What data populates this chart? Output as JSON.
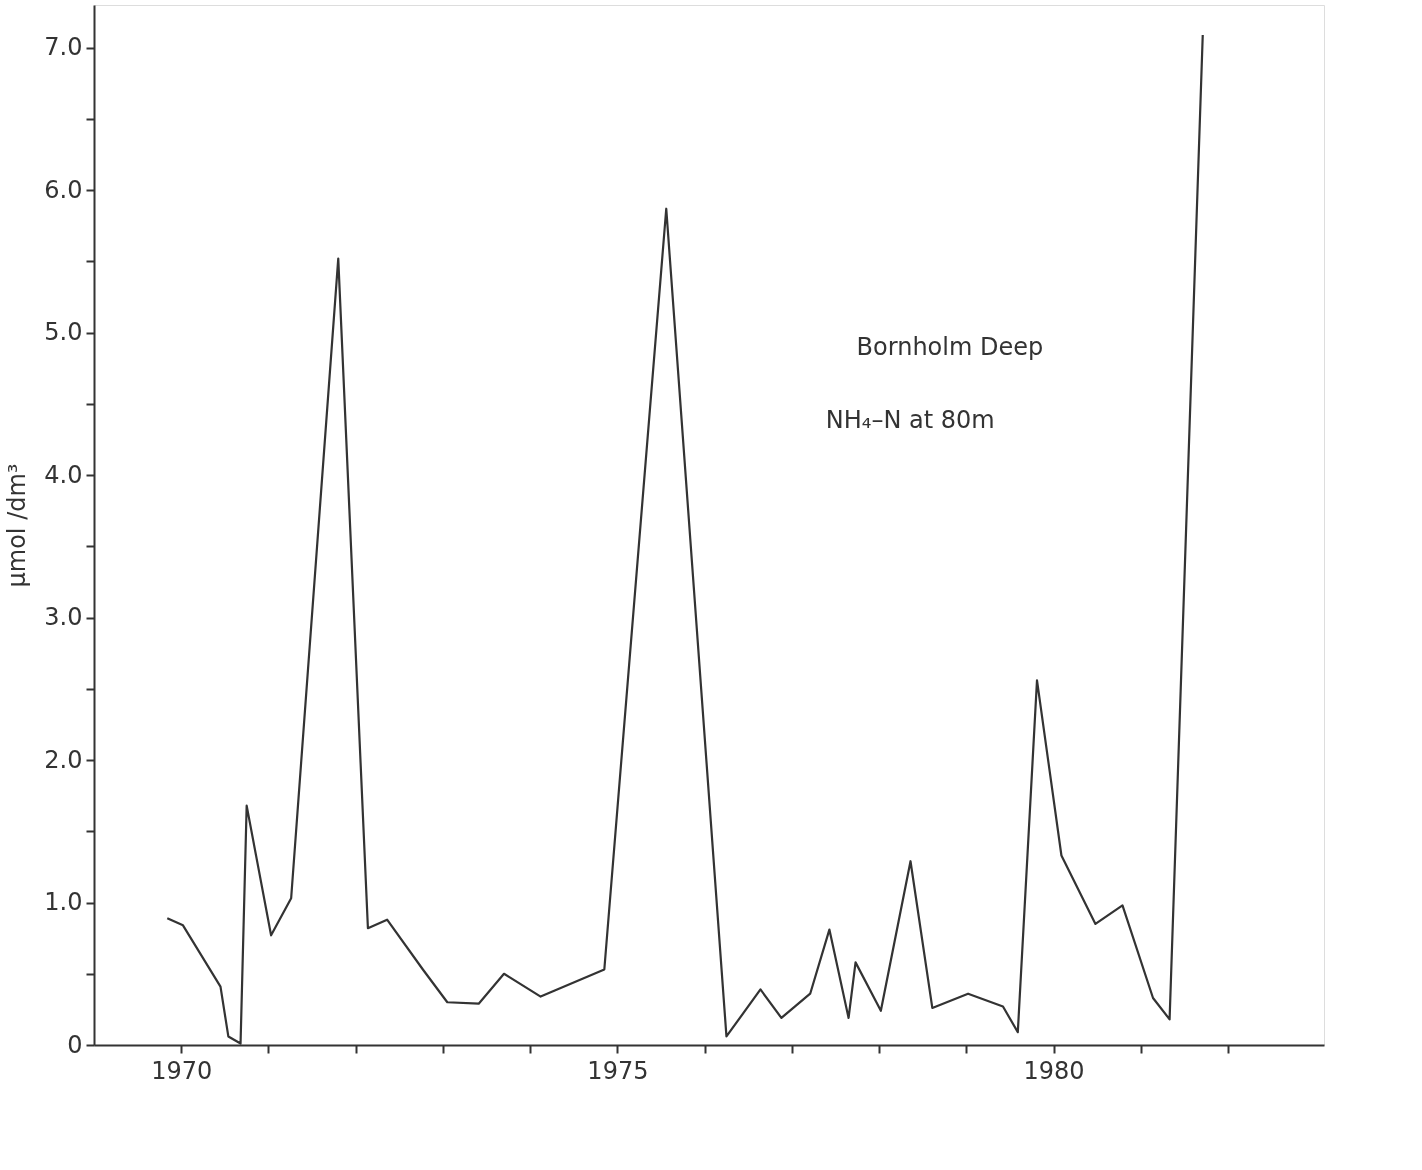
{
  "chart_data": {
    "type": "line",
    "ylabel": "μmol /dm³",
    "annotations": [
      "Bornholm Deep",
      "NH₄–N at 80m"
    ],
    "x": [
      1969.84,
      1970.02,
      1970.45,
      1970.54,
      1970.68,
      1970.75,
      1971.03,
      1971.26,
      1971.8,
      1972.14,
      1972.36,
      1972.77,
      1973.05,
      1973.41,
      1973.7,
      1974.12,
      1974.85,
      1975.56,
      1976.25,
      1976.64,
      1976.88,
      1977.21,
      1977.43,
      1977.65,
      1977.73,
      1978.02,
      1978.36,
      1978.61,
      1979.02,
      1979.42,
      1979.59,
      1979.81,
      1980.09,
      1980.48,
      1980.79,
      1981.14,
      1981.33,
      1981.71
    ],
    "series": [
      {
        "color": "#333333",
        "values": [
          0.89,
          0.84,
          0.41,
          0.06,
          0.01,
          1.68,
          0.77,
          1.03,
          5.52,
          0.82,
          0.88,
          0.53,
          0.3,
          0.29,
          0.5,
          0.34,
          0.53,
          5.87,
          0.06,
          0.39,
          0.19,
          0.36,
          0.81,
          0.19,
          0.58,
          0.24,
          1.29,
          0.26,
          0.36,
          0.27,
          0.09,
          2.56,
          1.33,
          0.85,
          0.98,
          0.33,
          0.18,
          7.09
        ]
      }
    ],
    "xlim": [
      1969.0,
      1983.1
    ],
    "ylim": [
      0,
      7.3
    ],
    "xticks": [
      1970,
      {
        "value": 1971,
        "label": null
      },
      {
        "value": 1972,
        "label": null
      },
      {
        "value": 1973,
        "label": null
      },
      {
        "value": 1974,
        "label": null
      },
      1975,
      {
        "value": 1976,
        "label": null
      },
      {
        "value": 1977,
        "label": null
      },
      {
        "value": 1978,
        "label": null
      },
      {
        "value": 1979,
        "label": null
      },
      1980,
      {
        "value": 1981,
        "label": null
      },
      {
        "value": 1982,
        "label": null
      }
    ],
    "yticks": [
      0,
      {
        "value": 0.5,
        "label": null
      },
      {
        "value": 1,
        "label": "1.0"
      },
      {
        "value": 1.5,
        "label": null
      },
      {
        "value": 2,
        "label": "2.0"
      },
      {
        "value": 2.5,
        "label": null
      },
      {
        "value": 3,
        "label": "3.0"
      },
      {
        "value": 3.5,
        "label": null
      },
      {
        "value": 4,
        "label": "4.0"
      },
      {
        "value": 4.5,
        "label": null
      },
      {
        "value": 5,
        "label": "5.0"
      },
      {
        "value": 5.5,
        "label": null
      },
      {
        "value": 6,
        "label": "6.0"
      },
      {
        "value": 6.5,
        "label": null
      },
      {
        "value": 7,
        "label": "7.0"
      }
    ],
    "grid": false,
    "marker": "none",
    "line_style": "solid"
  }
}
